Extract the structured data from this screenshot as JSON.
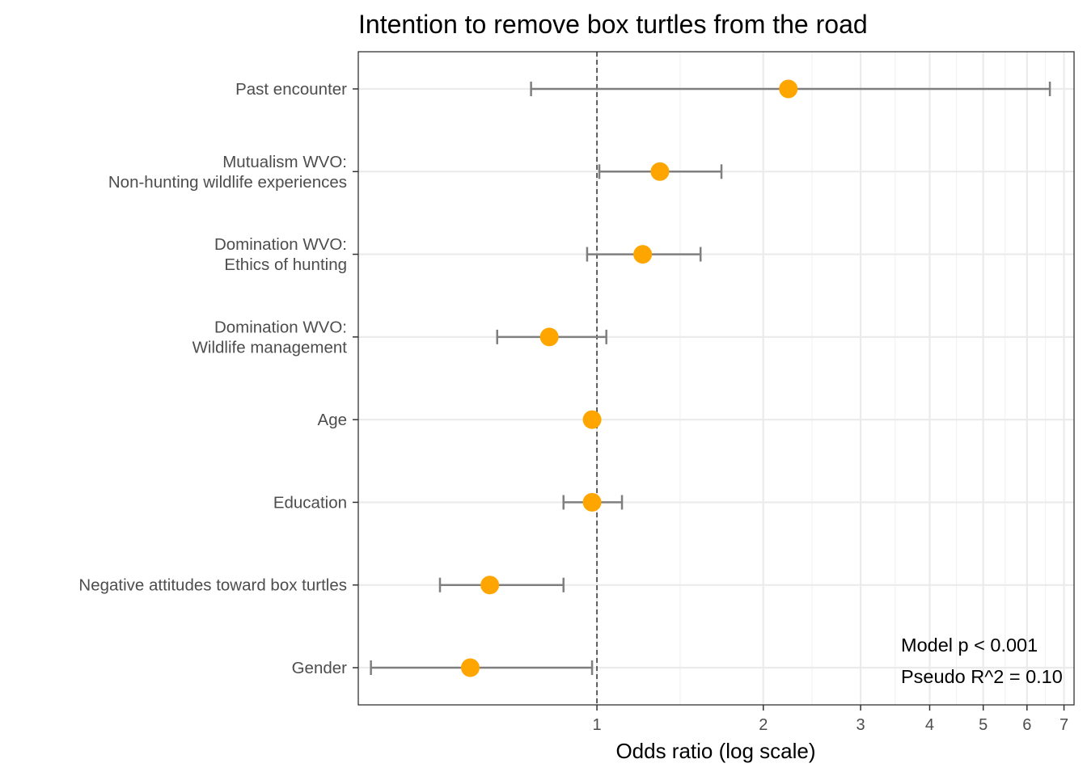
{
  "chart_data": {
    "type": "forest",
    "title": "Intention to remove box turtles from the road",
    "xlabel": "Odds ratio (log scale)",
    "ylabel": "",
    "x_scale": "log",
    "x_range": [
      0.37,
      7.3
    ],
    "x_ticks": [
      1,
      2,
      3,
      4,
      5,
      6,
      7
    ],
    "reference_line": 1,
    "grid": true,
    "point_color": "#FFA500",
    "errorbar_color": "#7f7f7f",
    "rows": [
      {
        "label": [
          "Past encounter"
        ],
        "estimate": 2.22,
        "lower": 0.76,
        "upper": 6.6
      },
      {
        "label": [
          "Mutualism WVO:",
          "Non-hunting wildlife experiences"
        ],
        "estimate": 1.3,
        "lower": 1.01,
        "upper": 1.68
      },
      {
        "label": [
          "Domination WVO:",
          "Ethics of hunting"
        ],
        "estimate": 1.21,
        "lower": 0.96,
        "upper": 1.54
      },
      {
        "label": [
          "Domination WVO:",
          "Wildlife management"
        ],
        "estimate": 0.82,
        "lower": 0.66,
        "upper": 1.04
      },
      {
        "label": [
          "Age"
        ],
        "estimate": 0.98,
        "lower": null,
        "upper": null
      },
      {
        "label": [
          "Education"
        ],
        "estimate": 0.98,
        "lower": 0.87,
        "upper": 1.11
      },
      {
        "label": [
          "Negative attitudes toward box turtles"
        ],
        "estimate": 0.64,
        "lower": 0.52,
        "upper": 0.87
      },
      {
        "label": [
          "Gender"
        ],
        "estimate": 0.59,
        "lower": 0.39,
        "upper": 0.98
      }
    ],
    "annotations": [
      "Model p < 0.001",
      "Pseudo R^2 = 0.10"
    ]
  }
}
